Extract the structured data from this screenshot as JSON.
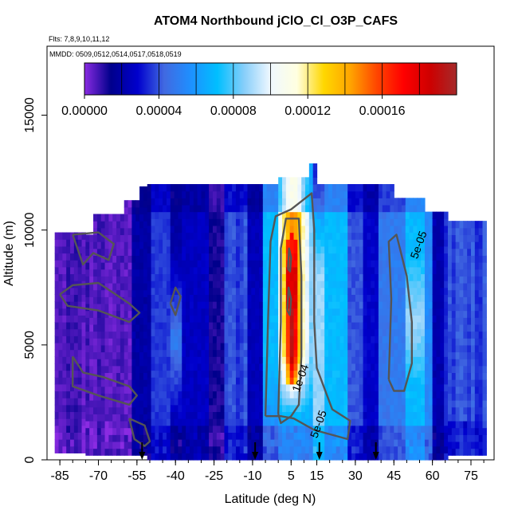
{
  "chart_data": {
    "type": "heatmap",
    "title": "ATOM4 Northbound jClO_Cl_O3P_CAFS",
    "flights_note": "Flts: 7,8,9,10,11,12",
    "dates_note": "MMDD: 0509,0512,0514,0517,0518,0519",
    "xlabel": "Latitude (deg N)",
    "ylabel": "Altitude (m)",
    "xlim": [
      -90,
      84
    ],
    "ylim": [
      0,
      18000
    ],
    "x_ticks": [
      -85,
      -70,
      -55,
      -40,
      -25,
      -10,
      5,
      15,
      30,
      45,
      60,
      75
    ],
    "y_ticks": [
      0,
      5000,
      10000,
      15000
    ],
    "colorbar": {
      "min": 0,
      "max": 0.0002,
      "tick_values": [
        0,
        4e-05,
        8e-05,
        0.00012,
        0.00016
      ],
      "tick_labels": [
        "0.00000",
        "0.00004",
        "0.00008",
        "0.00012",
        "0.00016"
      ],
      "colors": [
        "#8a2be2",
        "#00008b",
        "#0000cd",
        "#4169e1",
        "#1e90ff",
        "#00bfff",
        "#87cefa",
        "#f0f8ff",
        "#ffffe0",
        "#ffd700",
        "#ffa500",
        "#ff4500",
        "#ff0000",
        "#cd0000",
        "#a52a2a"
      ]
    },
    "contour_labels": [
      {
        "text": "1e-04",
        "lat": 10,
        "alt": 3500
      },
      {
        "text": "5e-05",
        "lat": 17,
        "alt": 1500
      },
      {
        "text": "5e-05",
        "lat": 56,
        "alt": 9300
      }
    ],
    "flight_arrows_lat": [
      -53,
      -9,
      16,
      38
    ]
  }
}
